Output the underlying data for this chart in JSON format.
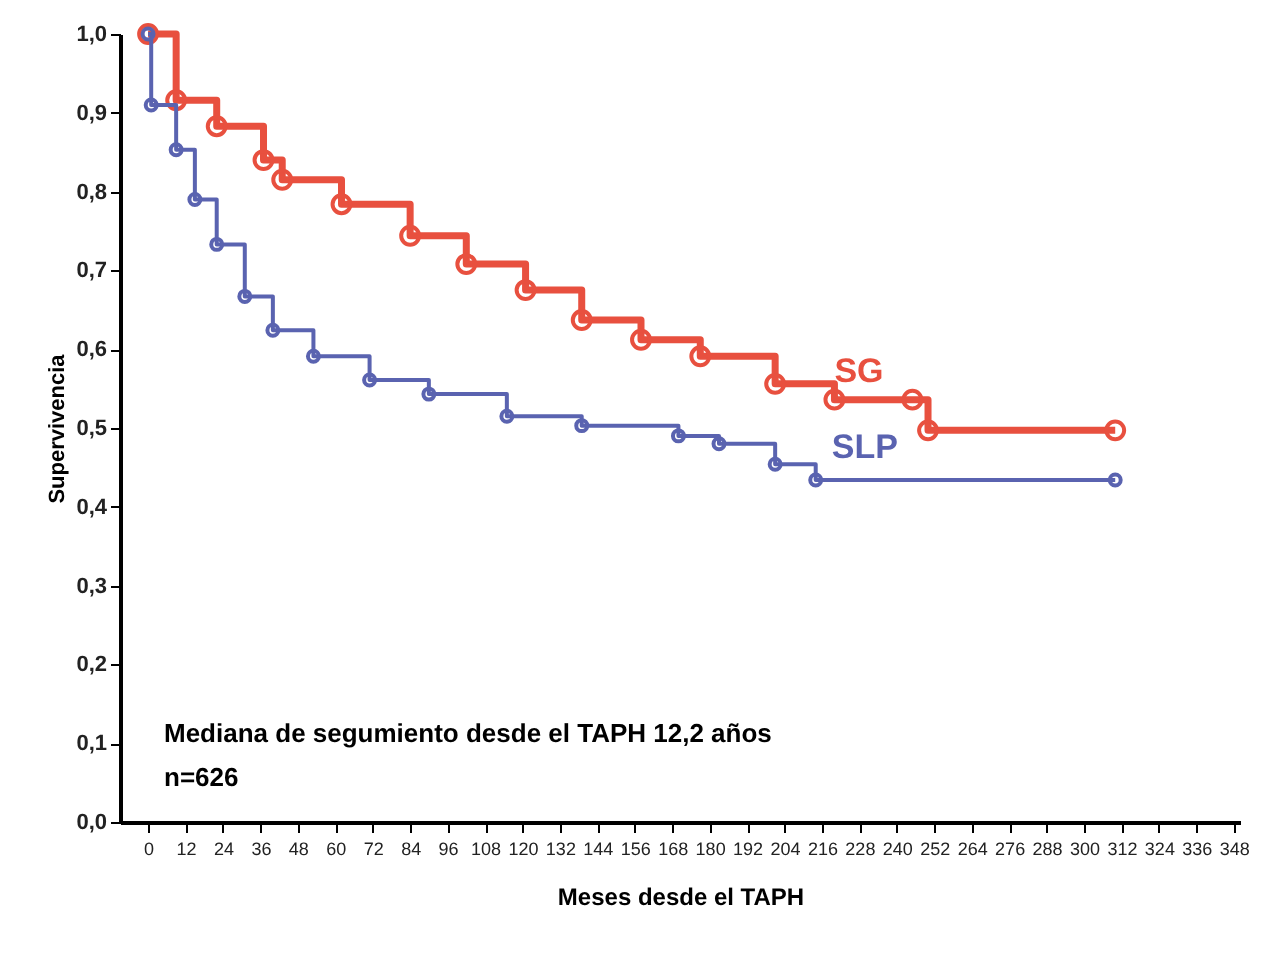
{
  "chart_data": {
    "type": "step",
    "xlabel": "Meses desde el TAPH",
    "ylabel": "Supervivencia",
    "annotations": [
      "Mediana de segumiento desde el TAPH 12,2 años",
      "n=626"
    ],
    "series": [
      {
        "name": "SG",
        "color": "#e8503f",
        "x": [
          0,
          9,
          22,
          37,
          43,
          62,
          84,
          102,
          121,
          139,
          158,
          177,
          201,
          220,
          245,
          250,
          310
        ],
        "values": [
          1.0,
          0.916,
          0.883,
          0.84,
          0.815,
          0.784,
          0.744,
          0.708,
          0.675,
          0.637,
          0.612,
          0.591,
          0.556,
          0.536,
          0.536,
          0.497,
          0.497
        ]
      },
      {
        "name": "SLP",
        "color": "#5a63b0",
        "x": [
          0,
          1,
          9,
          15,
          22,
          31,
          40,
          53,
          71,
          90,
          115,
          139,
          170,
          183,
          201,
          214,
          310
        ],
        "values": [
          1.0,
          0.91,
          0.853,
          0.79,
          0.733,
          0.667,
          0.624,
          0.591,
          0.561,
          0.543,
          0.515,
          0.503,
          0.49,
          0.48,
          0.454,
          0.434,
          0.434
        ]
      }
    ],
    "xlim": [
      -9,
      350
    ],
    "xticks": [
      0,
      12,
      24,
      36,
      48,
      60,
      72,
      84,
      96,
      108,
      120,
      132,
      144,
      156,
      168,
      180,
      192,
      204,
      216,
      228,
      240,
      252,
      264,
      276,
      288,
      300,
      312,
      324,
      336,
      348
    ],
    "ylim": [
      0,
      1
    ],
    "yticks": [
      {
        "value": 0,
        "label": "0,0"
      },
      {
        "value": 0.1,
        "label": "0,1"
      },
      {
        "value": 0.2,
        "label": "0,2"
      },
      {
        "value": 0.3,
        "label": "0,3"
      },
      {
        "value": 0.4,
        "label": "0,4"
      },
      {
        "value": 0.5,
        "label": "0,5"
      },
      {
        "value": 0.6,
        "label": "0,6"
      },
      {
        "value": 0.7,
        "label": "0,7"
      },
      {
        "value": 0.8,
        "label": "0,8"
      },
      {
        "value": 0.9,
        "label": "0,9"
      },
      {
        "value": 1,
        "label": "1,0"
      }
    ],
    "grid": false,
    "legend": false,
    "marker": "circle",
    "line_style": "solid"
  }
}
